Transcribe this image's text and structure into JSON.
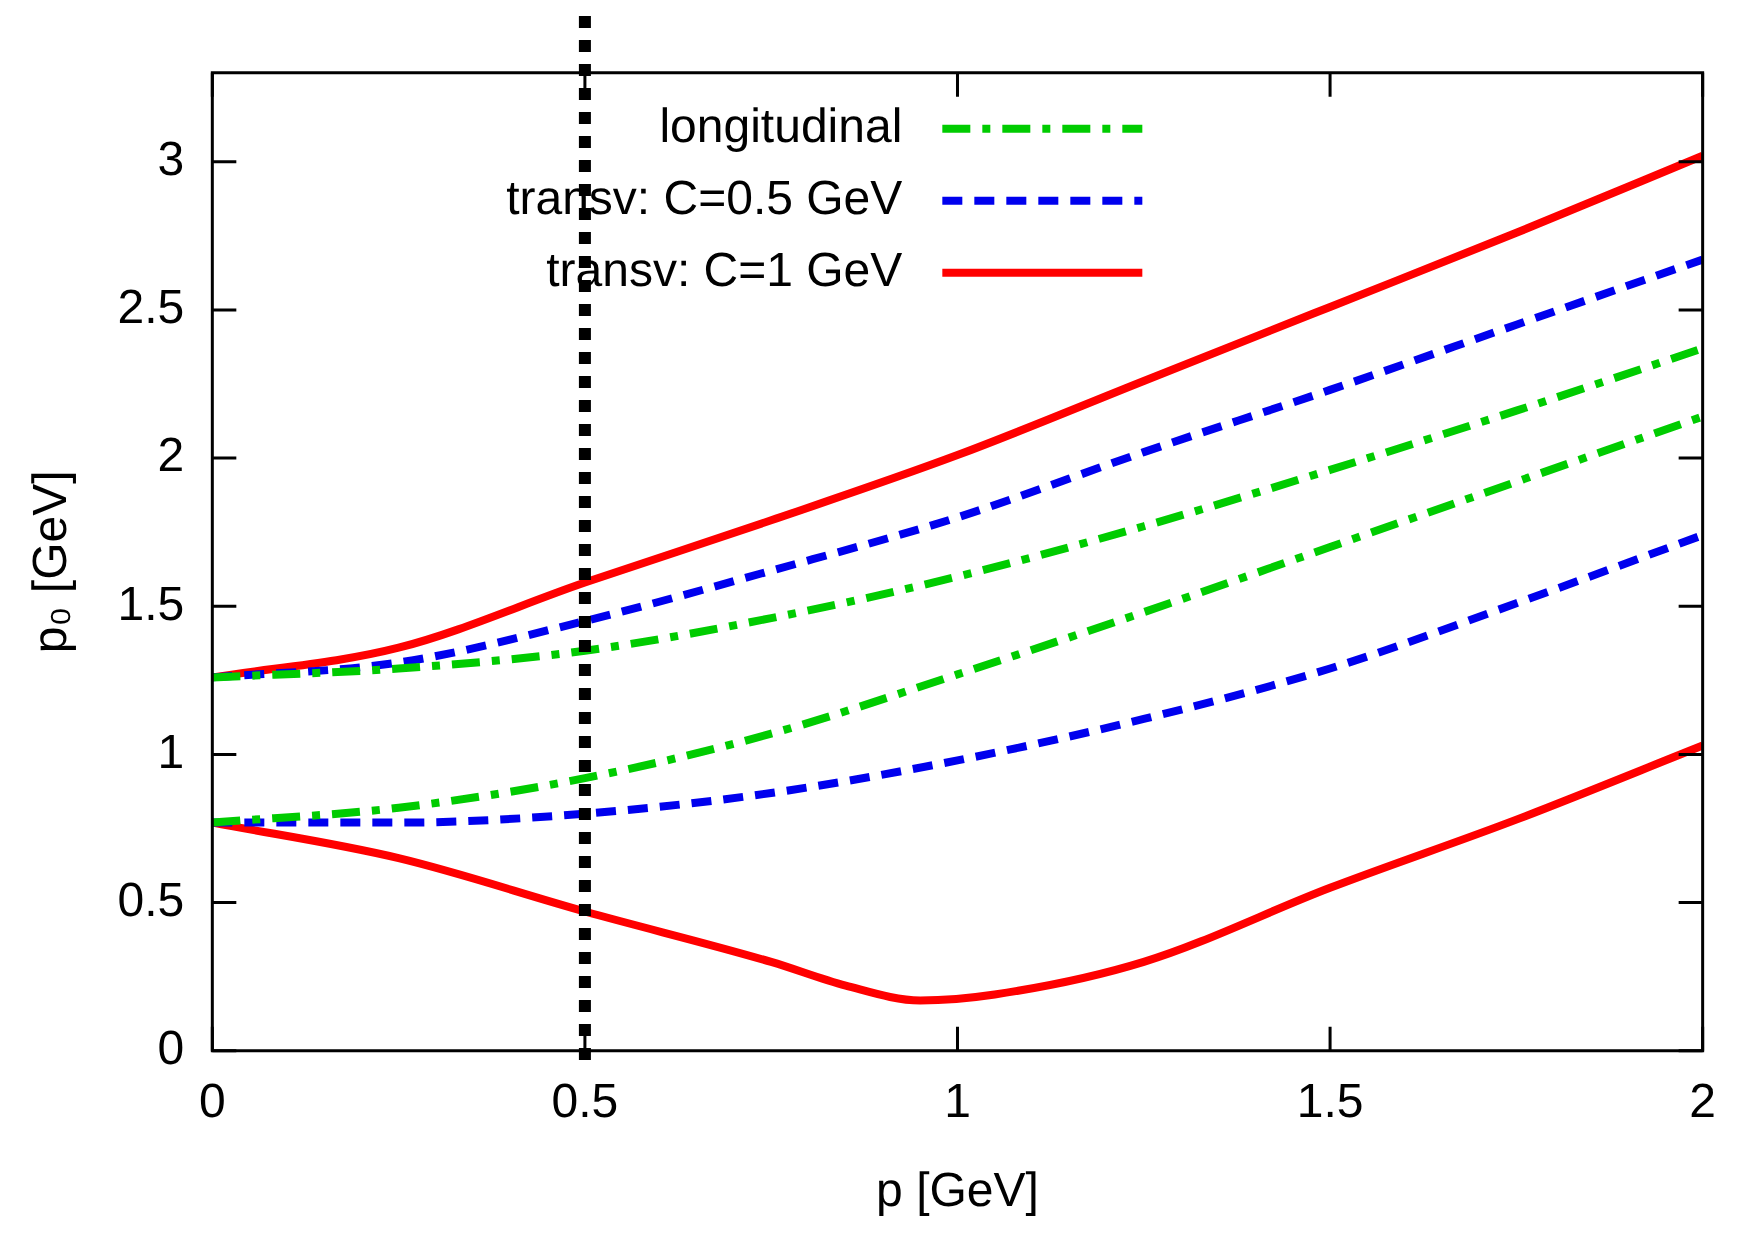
{
  "chart_data": {
    "type": "line",
    "xlabel": "p [GeV]",
    "ylabel": "p₀ [GeV]",
    "xlim": [
      0,
      2
    ],
    "ylim": [
      0,
      3.3
    ],
    "xticks": [
      0,
      0.5,
      1,
      1.5,
      2
    ],
    "yticks": [
      0,
      0.5,
      1,
      1.5,
      2,
      2.5,
      3
    ],
    "grid": false,
    "legend": "top left",
    "marker": "none",
    "x": [
      0,
      0.25,
      0.5,
      0.75,
      1,
      1.25,
      1.5,
      1.75,
      2
    ],
    "series": [
      {
        "name": "longitudinal",
        "color": "#00cc00",
        "line_style": "dashdot",
        "values": [
          1.26,
          1.29,
          1.35,
          1.46,
          1.6,
          1.77,
          1.96,
          2.16,
          2.37
        ]
      },
      {
        "name": "transv: C=0.5 GeV",
        "color": "#0000ee",
        "line_style": "dashed",
        "values": [
          1.26,
          1.31,
          1.45,
          1.62,
          1.8,
          2.02,
          2.23,
          2.45,
          2.67
        ]
      },
      {
        "name": "transv: C=1 GeV",
        "color": "#ff0000",
        "line_style": "solid",
        "values": [
          1.26,
          1.36,
          1.58,
          1.79,
          2.01,
          2.26,
          2.51,
          2.76,
          3.02
        ]
      },
      {
        "color": "#00cc00",
        "line_style": "dashdot",
        "values": [
          0.77,
          0.82,
          0.92,
          1.07,
          1.27,
          1.48,
          1.7,
          1.92,
          2.14
        ]
      },
      {
        "color": "#0000ee",
        "line_style": "dashed",
        "values": [
          0.77,
          0.77,
          0.8,
          0.87,
          0.98,
          1.12,
          1.29,
          1.51,
          1.74
        ]
      },
      {
        "color": "#ff0000",
        "line_style": "solid",
        "x": [
          0,
          0.25,
          0.5,
          0.75,
          0.85,
          0.95,
          1.05,
          1.25,
          1.5,
          1.75,
          2
        ],
        "values": [
          0.77,
          0.65,
          0.47,
          0.3,
          0.22,
          0.17,
          0.19,
          0.3,
          0.55,
          0.78,
          1.03
        ]
      }
    ],
    "ref_lines": [
      {
        "axis": "x",
        "value": 0.5,
        "color": "#000000",
        "line_style": "dotted"
      }
    ]
  }
}
